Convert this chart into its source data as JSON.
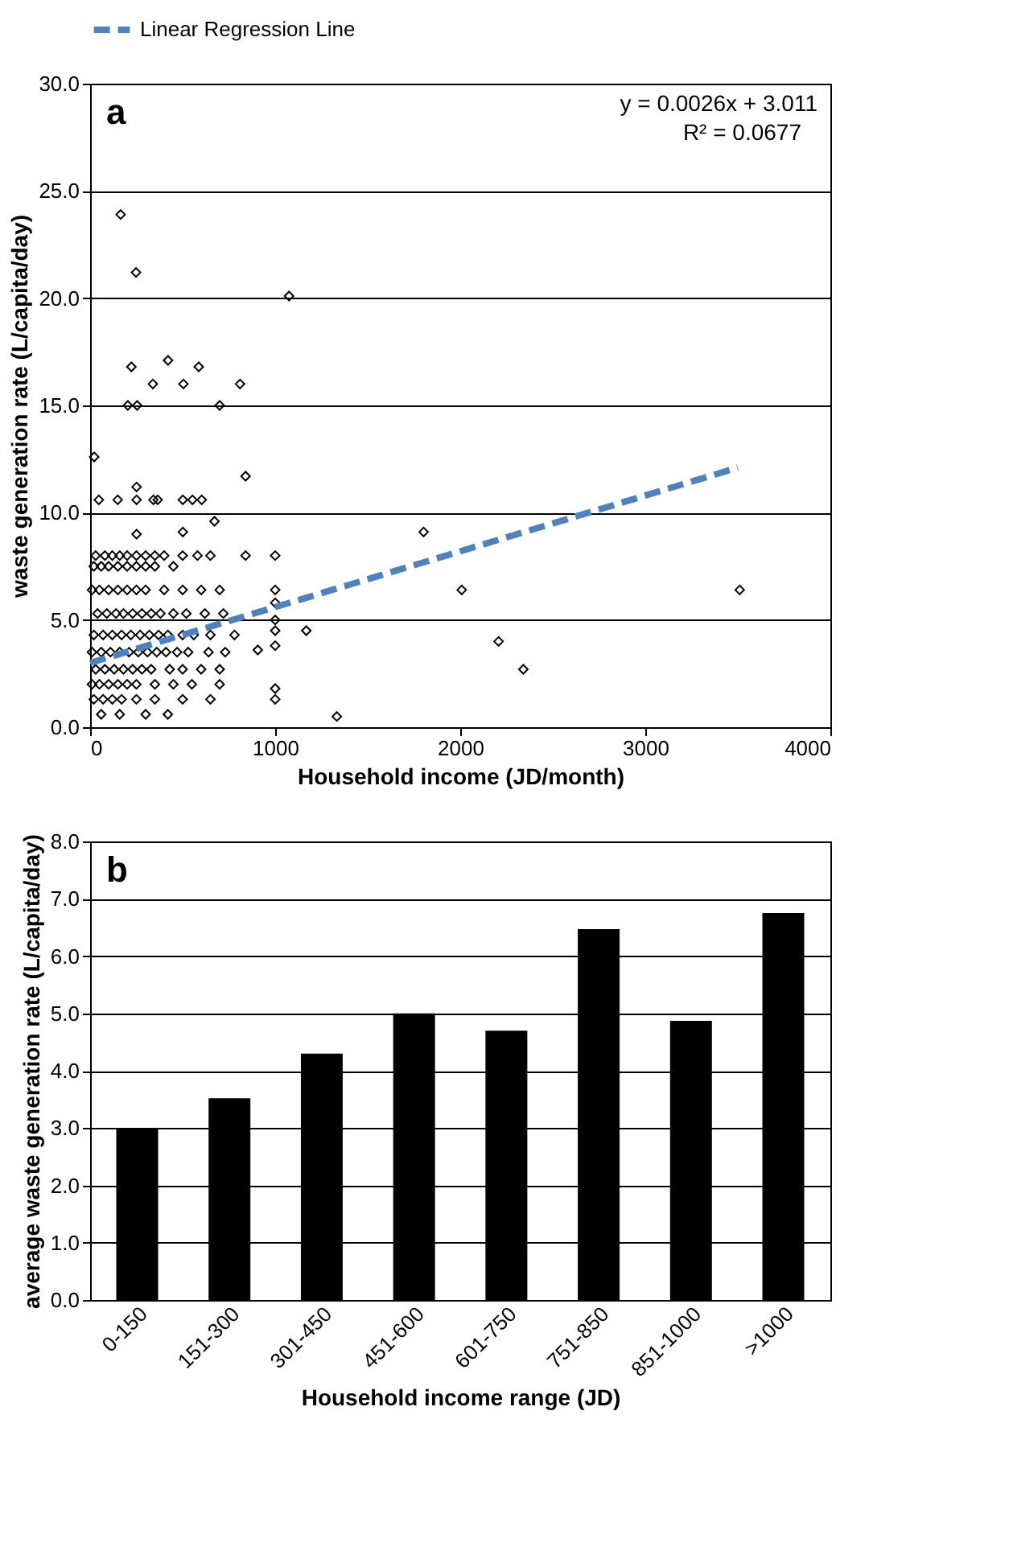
{
  "chart_data": [
    {
      "type": "scatter",
      "title": "a",
      "xlabel": "Household income (JD/month)",
      "ylabel": "waste generation rate (L/capita/day)",
      "annotations": [
        "y = 0.0026x + 3.011",
        "R² = 0.0677"
      ],
      "xlim": [
        0,
        4000
      ],
      "xticks": [
        0,
        1000,
        2000,
        3000,
        4000
      ],
      "ylim": [
        0,
        30
      ],
      "yticks": [
        {
          "value": 0,
          "label": "0.0"
        },
        {
          "value": 5,
          "label": "5.0"
        },
        {
          "value": 10,
          "label": "10.0"
        },
        {
          "value": 15,
          "label": "15.0"
        },
        {
          "value": 20,
          "label": "20.0"
        },
        {
          "value": 25,
          "label": "25.0"
        },
        {
          "value": 30,
          "label": "30.0"
        }
      ],
      "grid": "y",
      "legend": "top",
      "series": [
        {
          "type": "scatter",
          "color": "#000000",
          "marker": "diamond",
          "x": [
            165,
            248,
            1075,
            223,
            421,
            587,
            339,
            504,
            810,
            204,
            254,
            700,
            22,
            840,
            47,
            149,
            251,
            342,
            365,
            501,
            553,
            603,
            251,
            1802,
            2008,
            3510,
            2207,
            2341,
            1333,
            1168,
            1000,
            1000,
            1000,
            1000,
            1000,
            1000,
            1000,
            1000,
            672,
            501,
            251,
            840,
            906,
            30,
            80,
            120,
            160,
            200,
            250,
            300,
            350,
            400,
            500,
            580,
            650,
            20,
            60,
            100,
            150,
            200,
            250,
            300,
            350,
            450,
            10,
            50,
            100,
            150,
            200,
            250,
            300,
            400,
            500,
            600,
            700,
            40,
            90,
            140,
            180,
            230,
            280,
            330,
            380,
            450,
            520,
            620,
            720,
            20,
            70,
            120,
            170,
            220,
            270,
            320,
            370,
            420,
            500,
            560,
            650,
            780,
            10,
            60,
            110,
            160,
            210,
            260,
            310,
            360,
            410,
            470,
            530,
            640,
            730,
            30,
            80,
            130,
            180,
            230,
            280,
            330,
            430,
            500,
            600,
            700,
            10,
            50,
            100,
            150,
            200,
            250,
            350,
            450,
            550,
            700,
            20,
            70,
            120,
            170,
            250,
            350,
            500,
            650,
            60,
            160,
            300,
            420
          ],
          "values": [
            23.9,
            21.2,
            20.1,
            16.8,
            17.1,
            16.8,
            16.0,
            16.0,
            16.0,
            15.0,
            15.0,
            15.0,
            12.6,
            11.7,
            10.6,
            10.6,
            10.6,
            10.6,
            10.6,
            10.6,
            10.6,
            10.6,
            11.2,
            9.1,
            6.4,
            6.4,
            4.0,
            2.7,
            0.5,
            4.5,
            8.0,
            6.4,
            5.8,
            5.0,
            4.5,
            3.8,
            1.8,
            1.3,
            9.6,
            9.1,
            9.0,
            8.0,
            3.6,
            8.0,
            8.0,
            8.0,
            8.0,
            8.0,
            8.0,
            8.0,
            8.0,
            8.0,
            8.0,
            8.0,
            8.0,
            7.5,
            7.5,
            7.5,
            7.5,
            7.5,
            7.5,
            7.5,
            7.5,
            7.5,
            6.4,
            6.4,
            6.4,
            6.4,
            6.4,
            6.4,
            6.4,
            6.4,
            6.4,
            6.4,
            6.4,
            5.3,
            5.3,
            5.3,
            5.3,
            5.3,
            5.3,
            5.3,
            5.3,
            5.3,
            5.3,
            5.3,
            5.3,
            4.3,
            4.3,
            4.3,
            4.3,
            4.3,
            4.3,
            4.3,
            4.3,
            4.3,
            4.3,
            4.3,
            4.3,
            4.3,
            3.5,
            3.5,
            3.5,
            3.5,
            3.5,
            3.5,
            3.5,
            3.5,
            3.5,
            3.5,
            3.5,
            3.5,
            3.5,
            2.7,
            2.7,
            2.7,
            2.7,
            2.7,
            2.7,
            2.7,
            2.7,
            2.7,
            2.7,
            2.7,
            2.0,
            2.0,
            2.0,
            2.0,
            2.0,
            2.0,
            2.0,
            2.0,
            2.0,
            2.0,
            1.3,
            1.3,
            1.3,
            1.3,
            1.3,
            1.3,
            1.3,
            1.3,
            0.6,
            0.6,
            0.6,
            0.6
          ]
        },
        {
          "type": "line",
          "name": "Linear Regression Line",
          "color": "#4f81bd",
          "line_style": "dashed",
          "x": [
            0,
            3500
          ],
          "values": [
            3.0,
            12.1
          ]
        }
      ]
    },
    {
      "type": "bar",
      "title": "b",
      "xlabel": "Household income range (JD)",
      "ylabel": "average waste generation rate (L/capita/day)",
      "categories": [
        "0-150",
        "151-300",
        "301-450",
        "451-600",
        "601-750",
        "751-850",
        "851-1000",
        ">1000"
      ],
      "values": [
        3.0,
        3.52,
        4.3,
        5.0,
        4.7,
        6.47,
        4.87,
        6.75
      ],
      "color": "#000000",
      "ylim": [
        0,
        8
      ],
      "yticks": [
        {
          "value": 0,
          "label": "0.0"
        },
        {
          "value": 1,
          "label": "1.0"
        },
        {
          "value": 2,
          "label": "2.0"
        },
        {
          "value": 3,
          "label": "3.0"
        },
        {
          "value": 4,
          "label": "4.0"
        },
        {
          "value": 5,
          "label": "5.0"
        },
        {
          "value": 6,
          "label": "6.0"
        },
        {
          "value": 7,
          "label": "7.0"
        },
        {
          "value": 8,
          "label": "8.0"
        }
      ],
      "grid": "y"
    }
  ]
}
